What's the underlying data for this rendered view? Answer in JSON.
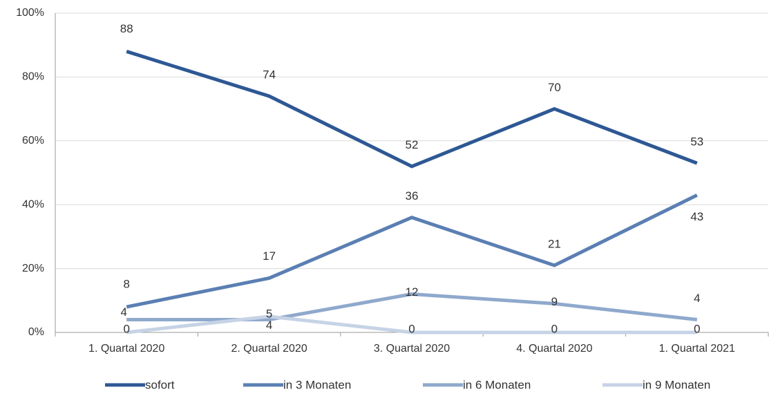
{
  "chart_data": {
    "type": "line",
    "categories": [
      "1. Quartal 2020",
      "2. Quartal 2020",
      "3. Quartal 2020",
      "4. Quartal 2020",
      "1. Quartal 2021"
    ],
    "series": [
      {
        "name": "sofort",
        "color": "#2e5894",
        "values": [
          88,
          74,
          52,
          70,
          53
        ]
      },
      {
        "name": "in 3 Monaten",
        "color": "#5b7fb3",
        "values": [
          8,
          17,
          36,
          21,
          43
        ]
      },
      {
        "name": "in 6 Monaten",
        "color": "#8fa9cc",
        "values": [
          4,
          4,
          12,
          9,
          4
        ]
      },
      {
        "name": "in 9 Monaten",
        "color": "#c6d3e6",
        "values": [
          0,
          5,
          0,
          0,
          0
        ]
      }
    ],
    "ylim": [
      0,
      100
    ],
    "yticks": [
      {
        "value": 0,
        "label": "0%"
      },
      {
        "value": 20,
        "label": "20%"
      },
      {
        "value": 40,
        "label": "40%"
      },
      {
        "value": 60,
        "label": "60%"
      },
      {
        "value": 80,
        "label": "80%"
      },
      {
        "value": 100,
        "label": "100%"
      }
    ],
    "grid": true,
    "legend": "bottom"
  }
}
